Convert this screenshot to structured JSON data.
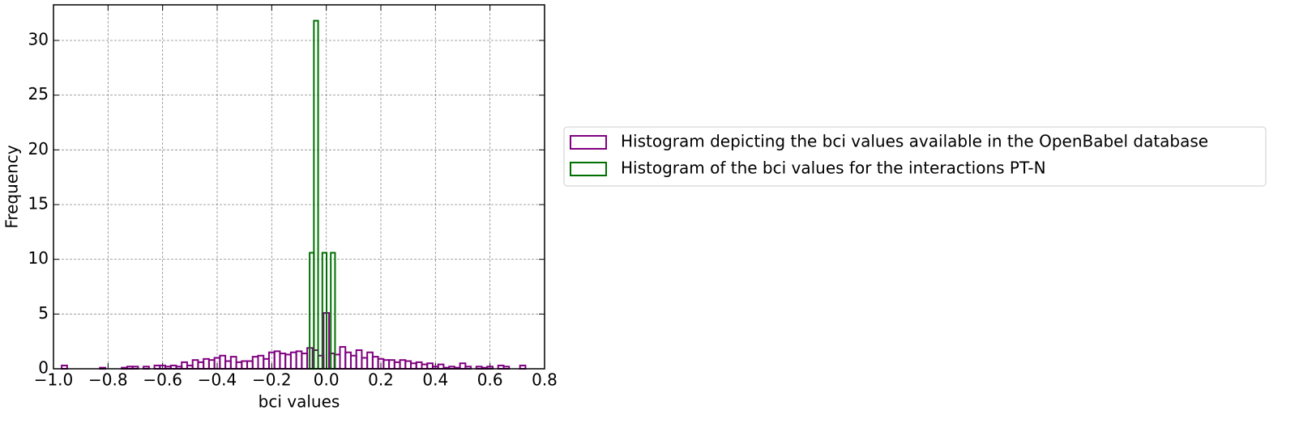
{
  "chart_data": {
    "type": "histogram",
    "xlabel": "bci values",
    "ylabel": "Frequency",
    "xlim": [
      -1.0,
      0.8
    ],
    "ylim": [
      0,
      33.25
    ],
    "xticks": [
      {
        "value": -1.0,
        "label": "−1.0"
      },
      {
        "value": -0.8,
        "label": "−0.8"
      },
      {
        "value": -0.6,
        "label": "−0.6"
      },
      {
        "value": -0.4,
        "label": "−0.4"
      },
      {
        "value": -0.2,
        "label": "−0.2"
      },
      {
        "value": 0.0,
        "label": "0.0"
      },
      {
        "value": 0.2,
        "label": "0.2"
      },
      {
        "value": 0.4,
        "label": "0.4"
      },
      {
        "value": 0.6,
        "label": "0.6"
      },
      {
        "value": 0.8,
        "label": "0.8"
      }
    ],
    "yticks": [
      0,
      5,
      10,
      15,
      20,
      25,
      30
    ],
    "grid": true,
    "legend": "outside right",
    "series": [
      {
        "name": "Histogram depicting the bci values available in the OpenBabel database",
        "color": "#800080",
        "bins": [
          -0.97,
          -0.95,
          -0.93,
          -0.91,
          -0.89,
          -0.87,
          -0.85,
          -0.83,
          -0.81,
          -0.79,
          -0.77,
          -0.75,
          -0.73,
          -0.71,
          -0.69,
          -0.67,
          -0.65,
          -0.63,
          -0.61,
          -0.59,
          -0.57,
          -0.55,
          -0.53,
          -0.51,
          -0.49,
          -0.47,
          -0.45,
          -0.43,
          -0.41,
          -0.39,
          -0.37,
          -0.35,
          -0.33,
          -0.31,
          -0.29,
          -0.27,
          -0.25,
          -0.23,
          -0.21,
          -0.19,
          -0.17,
          -0.15,
          -0.13,
          -0.11,
          -0.09,
          -0.07,
          -0.05,
          -0.03,
          -0.01,
          0.01,
          0.03,
          0.05,
          0.07,
          0.09,
          0.11,
          0.13,
          0.15,
          0.17,
          0.19,
          0.21,
          0.23,
          0.25,
          0.27,
          0.29,
          0.31,
          0.33,
          0.35,
          0.37,
          0.39,
          0.41,
          0.43,
          0.45,
          0.47,
          0.49,
          0.51,
          0.53,
          0.55,
          0.57,
          0.59,
          0.61,
          0.63,
          0.65,
          0.67,
          0.69,
          0.71,
          0.73,
          0.75
        ],
        "values": [
          0.3,
          0,
          0,
          0,
          0,
          0,
          0,
          0.1,
          0,
          0,
          0,
          0.1,
          0.2,
          0.2,
          0,
          0.2,
          0,
          0.3,
          0.3,
          0.2,
          0.3,
          0.2,
          0.6,
          0.3,
          0.8,
          0.6,
          0.9,
          0.8,
          1.0,
          1.2,
          0.7,
          1.1,
          0.6,
          0.7,
          0.7,
          1.1,
          1.2,
          0.9,
          1.5,
          1.6,
          1.4,
          1.3,
          1.5,
          1.6,
          1.4,
          1.9,
          1.7,
          1.2,
          5.1,
          1.4,
          1.3,
          2.0,
          1.5,
          1.2,
          1.7,
          1.0,
          1.5,
          1.1,
          0.9,
          0.8,
          0.8,
          0.6,
          0.8,
          0.7,
          0.5,
          0.6,
          0.4,
          0.5,
          0.2,
          0.4,
          0.1,
          0.2,
          0.1,
          0.5,
          0.2,
          0,
          0.2,
          0.1,
          0.2,
          0,
          0.3,
          0.2,
          0,
          0,
          0.3,
          0
        ]
      },
      {
        "name": "Histogram of the bci values for the interactions PT-N",
        "color": "#007000",
        "bins": [
          -0.061,
          -0.0455,
          -0.03,
          -0.0145,
          0.001,
          0.0165,
          0.032
        ],
        "values": [
          10.6,
          31.8,
          0,
          10.6,
          0,
          10.6
        ]
      }
    ]
  }
}
